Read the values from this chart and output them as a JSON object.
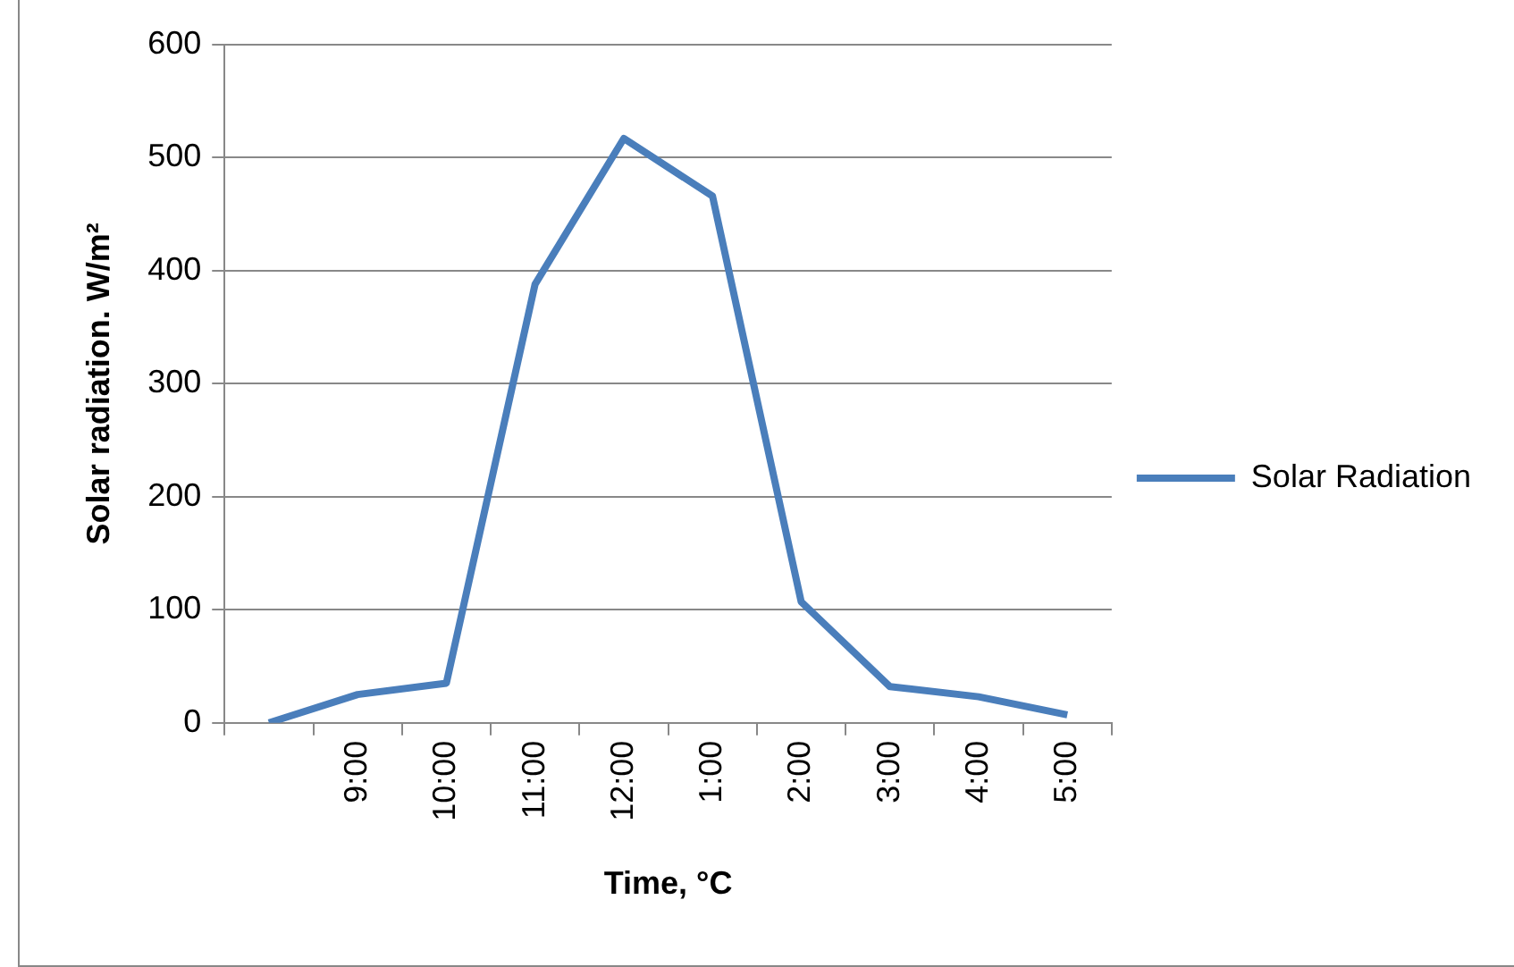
{
  "chart_data": {
    "type": "line",
    "xlabel": "Time, °C",
    "ylabel": "Solar radiation. W/m²",
    "categories": [
      null,
      "9:00",
      "10:00",
      "11:00",
      "12:00",
      "1:00",
      "2:00",
      "3:00",
      "4:00",
      "5:00"
    ],
    "series": [
      {
        "name": "Solar Radiation",
        "color": "#4a7ebb",
        "values": [
          0,
          25,
          35,
          388,
          517,
          466,
          107,
          32,
          23,
          7
        ]
      }
    ],
    "ylim": [
      0,
      600
    ],
    "yticks": [
      0,
      100,
      200,
      300,
      400,
      500,
      600
    ],
    "grid": "y",
    "legend": "right",
    "marker": "none",
    "line_style": "solid"
  }
}
